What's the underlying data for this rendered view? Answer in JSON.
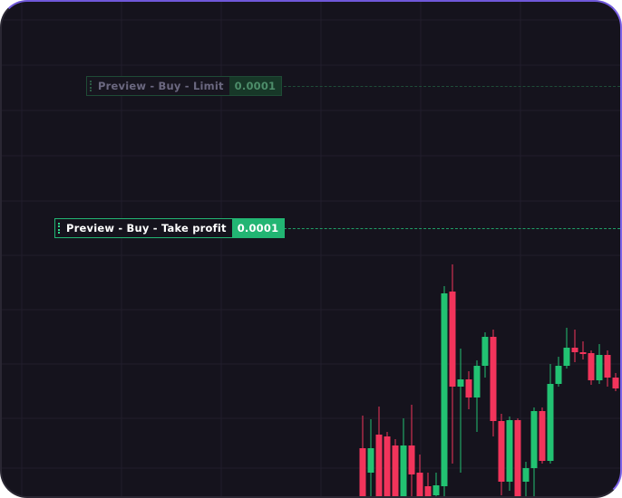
{
  "orders": {
    "limit": {
      "label": "Preview - Buy - Limit",
      "quantity": "0.0001",
      "handle_icon": "drag-handle-icon"
    },
    "take_profit": {
      "label": "Preview - Buy - Take profit",
      "quantity": "0.0001",
      "handle_icon": "drag-handle-icon"
    }
  },
  "colors": {
    "background": "#15131d",
    "up": "#22c272",
    "down": "#f2345b",
    "accent_border": "#7c62e6"
  }
}
